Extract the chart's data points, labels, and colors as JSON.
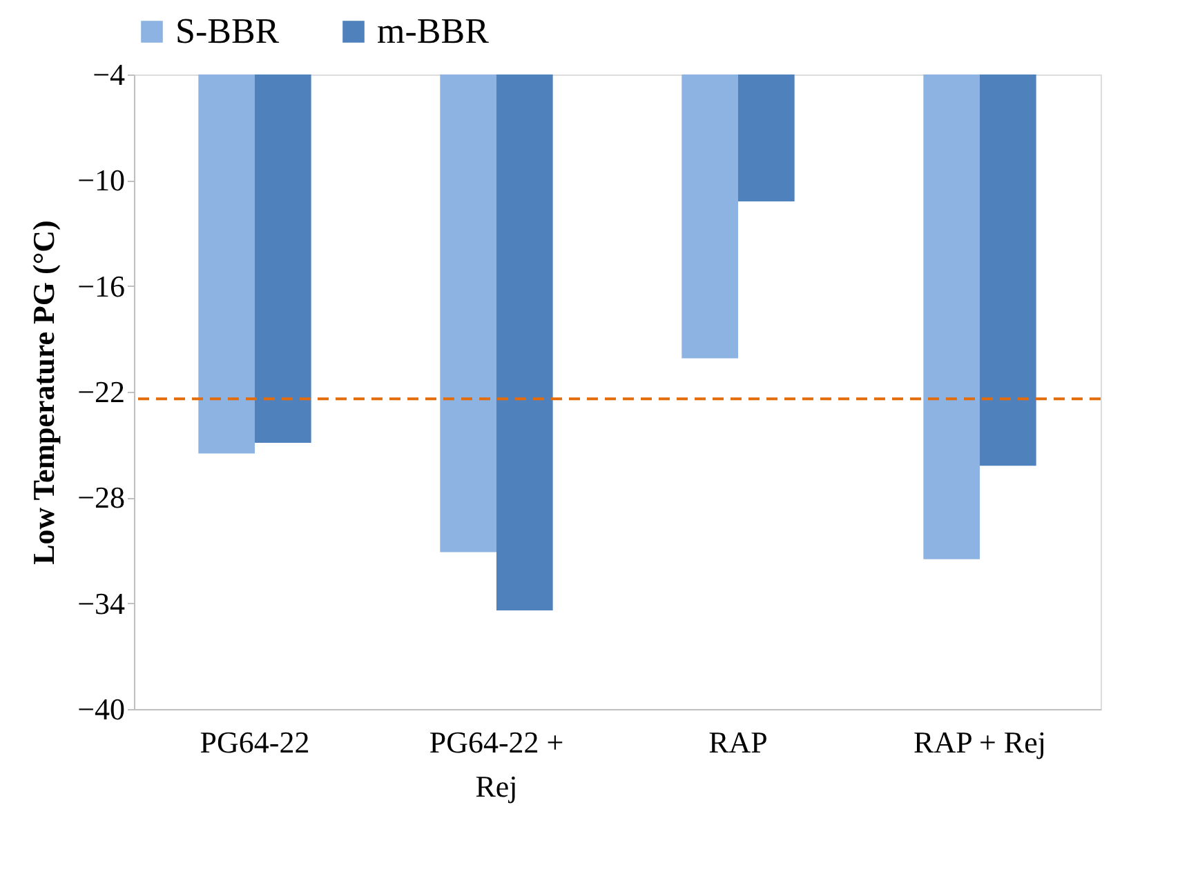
{
  "chart_data": {
    "type": "bar",
    "ylabel": "Low Temperature PG  (°C)",
    "categories": [
      "PG64-22",
      "PG64-22 + Rej",
      "RAP",
      "RAP + Rej"
    ],
    "series": [
      {
        "name": "S-BBR",
        "color": "#8db3e2",
        "values": [
          -25.5,
          -31.1,
          -20.1,
          -31.5
        ]
      },
      {
        "name": "m-BBR",
        "color": "#4f81bd",
        "values": [
          -24.9,
          -34.4,
          -11.2,
          -26.2
        ]
      }
    ],
    "ylim": [
      -40,
      -4
    ],
    "yticks": [
      -40,
      -34,
      -28,
      -22,
      -16,
      -10,
      -4
    ],
    "ref_lines": [
      {
        "axis": "y",
        "value": -22.4,
        "color": "#e46c0a",
        "line_style": "dashed"
      }
    ],
    "grid": false,
    "legend": "top"
  }
}
